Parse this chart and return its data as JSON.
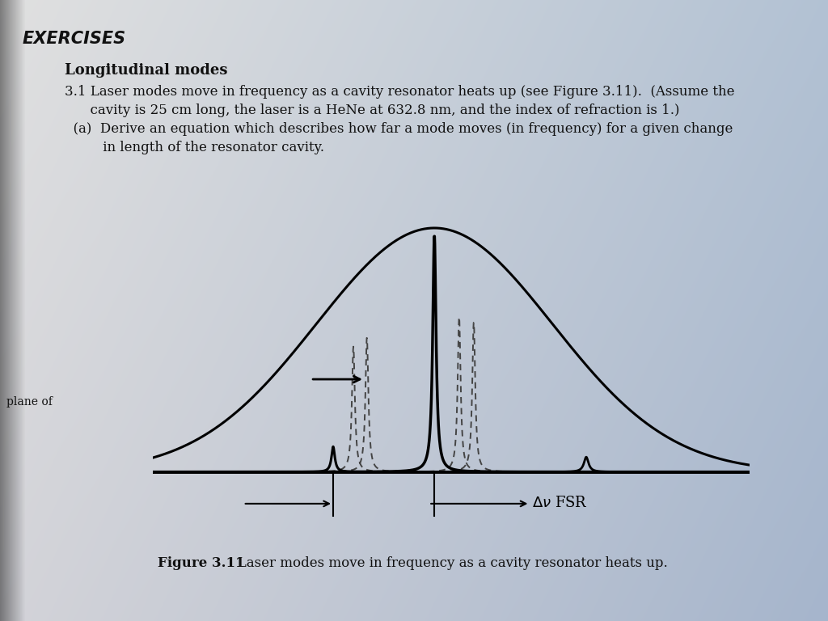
{
  "bg_color_left": "#d8d8d8",
  "bg_color_right": "#a8b8c8",
  "title_text": "EXERCISES",
  "title_fontsize": 15,
  "heading_text": "Longitudinal modes",
  "heading_fontsize": 13,
  "body_line1": "3.1 Laser modes move in frequency as a cavity resonator heats up (see Figure 3.11).  (Assume the",
  "body_line2": "      cavity is 25 cm long, the laser is a HeNe at 632.8 nm, and the index of refraction is 1.)",
  "body_line3": "  (a)  Derive an equation which describes how far a mode moves (in frequency) for a given change",
  "body_line4": "         in length of the resonator cavity.",
  "body_fontsize": 12,
  "caption_bold": "Figure 3.11",
  "caption_rest": "   Laser modes move in frequency as a cavity resonator heats up.",
  "caption_fontsize": 12,
  "plane_label": "plane of",
  "fsr_label_delta": "Δ",
  "fsr_label_nu": "ν",
  "fsr_label_fsr": " FSR"
}
